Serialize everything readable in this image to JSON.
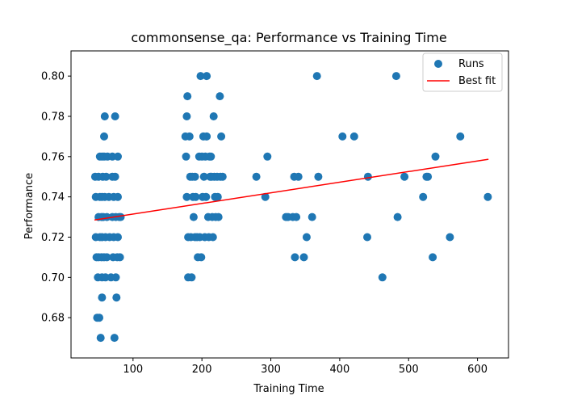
{
  "chart_data": {
    "type": "scatter",
    "title": "commonsense_qa: Performance vs Training Time",
    "xlabel": "Training Time",
    "ylabel": "Performance",
    "xlim": [
      10,
      645
    ],
    "ylim": [
      0.66,
      0.8125
    ],
    "xticks": [
      100,
      200,
      300,
      400,
      500,
      600
    ],
    "yticks": [
      0.68,
      0.7,
      0.72,
      0.74,
      0.76,
      0.78,
      0.8
    ],
    "ytick_labels": [
      "0.68",
      "0.70",
      "0.72",
      "0.74",
      "0.76",
      "0.78",
      "0.80"
    ],
    "legend": {
      "position": "top-right",
      "entries": [
        "Runs",
        "Best fit"
      ]
    },
    "colors": {
      "points": "#1f77b4",
      "fit": "#ff0000"
    },
    "series": [
      {
        "name": "Runs",
        "kind": "scatter",
        "points": [
          [
            45,
            0.75
          ],
          [
            46,
            0.74
          ],
          [
            46,
            0.72
          ],
          [
            47,
            0.71
          ],
          [
            48,
            0.68
          ],
          [
            49,
            0.7
          ],
          [
            50,
            0.75
          ],
          [
            50,
            0.73
          ],
          [
            50,
            0.71
          ],
          [
            51,
            0.68
          ],
          [
            52,
            0.76
          ],
          [
            52,
            0.74
          ],
          [
            52,
            0.72
          ],
          [
            53,
            0.67
          ],
          [
            54,
            0.73
          ],
          [
            54,
            0.71
          ],
          [
            55,
            0.76
          ],
          [
            55,
            0.74
          ],
          [
            55,
            0.72
          ],
          [
            55,
            0.7
          ],
          [
            55,
            0.69
          ],
          [
            56,
            0.75
          ],
          [
            57,
            0.73
          ],
          [
            58,
            0.71
          ],
          [
            58,
            0.76
          ],
          [
            58,
            0.77
          ],
          [
            59,
            0.78
          ],
          [
            59,
            0.74
          ],
          [
            60,
            0.72
          ],
          [
            60,
            0.7
          ],
          [
            61,
            0.75
          ],
          [
            62,
            0.73
          ],
          [
            62,
            0.71
          ],
          [
            63,
            0.76
          ],
          [
            65,
            0.74
          ],
          [
            66,
            0.72
          ],
          [
            68,
            0.7
          ],
          [
            70,
            0.76
          ],
          [
            70,
            0.75
          ],
          [
            70,
            0.73
          ],
          [
            71,
            0.71
          ],
          [
            72,
            0.74
          ],
          [
            72,
            0.72
          ],
          [
            73,
            0.67
          ],
          [
            74,
            0.78
          ],
          [
            74,
            0.75
          ],
          [
            75,
            0.73
          ],
          [
            75,
            0.7
          ],
          [
            76,
            0.69
          ],
          [
            77,
            0.71
          ],
          [
            78,
            0.76
          ],
          [
            78,
            0.74
          ],
          [
            78,
            0.72
          ],
          [
            80,
            0.73
          ],
          [
            81,
            0.71
          ],
          [
            82,
            0.73
          ],
          [
            176,
            0.77
          ],
          [
            177,
            0.76
          ],
          [
            178,
            0.74
          ],
          [
            178,
            0.78
          ],
          [
            179,
            0.79
          ],
          [
            180,
            0.72
          ],
          [
            180,
            0.7
          ],
          [
            182,
            0.77
          ],
          [
            183,
            0.75
          ],
          [
            184,
            0.72
          ],
          [
            185,
            0.7
          ],
          [
            186,
            0.75
          ],
          [
            187,
            0.74
          ],
          [
            188,
            0.73
          ],
          [
            190,
            0.72
          ],
          [
            190,
            0.75
          ],
          [
            191,
            0.74
          ],
          [
            193,
            0.72
          ],
          [
            194,
            0.71
          ],
          [
            196,
            0.76
          ],
          [
            197,
            0.72
          ],
          [
            198,
            0.8
          ],
          [
            199,
            0.71
          ],
          [
            200,
            0.76
          ],
          [
            201,
            0.74
          ],
          [
            202,
            0.77
          ],
          [
            203,
            0.75
          ],
          [
            204,
            0.72
          ],
          [
            205,
            0.76
          ],
          [
            206,
            0.74
          ],
          [
            207,
            0.77
          ],
          [
            207,
            0.8
          ],
          [
            209,
            0.73
          ],
          [
            210,
            0.72
          ],
          [
            211,
            0.76
          ],
          [
            212,
            0.75
          ],
          [
            213,
            0.76
          ],
          [
            214,
            0.75
          ],
          [
            215,
            0.73
          ],
          [
            216,
            0.72
          ],
          [
            217,
            0.78
          ],
          [
            218,
            0.75
          ],
          [
            219,
            0.74
          ],
          [
            220,
            0.73
          ],
          [
            222,
            0.75
          ],
          [
            223,
            0.74
          ],
          [
            224,
            0.73
          ],
          [
            226,
            0.79
          ],
          [
            227,
            0.75
          ],
          [
            228,
            0.77
          ],
          [
            230,
            0.75
          ],
          [
            279,
            0.75
          ],
          [
            292,
            0.74
          ],
          [
            295,
            0.76
          ],
          [
            322,
            0.73
          ],
          [
            325,
            0.73
          ],
          [
            332,
            0.73
          ],
          [
            334,
            0.75
          ],
          [
            335,
            0.71
          ],
          [
            337,
            0.73
          ],
          [
            340,
            0.75
          ],
          [
            348,
            0.71
          ],
          [
            352,
            0.72
          ],
          [
            360,
            0.73
          ],
          [
            367,
            0.8
          ],
          [
            369,
            0.75
          ],
          [
            404,
            0.77
          ],
          [
            421,
            0.77
          ],
          [
            440,
            0.72
          ],
          [
            441,
            0.75
          ],
          [
            462,
            0.7
          ],
          [
            482,
            0.8
          ],
          [
            484,
            0.73
          ],
          [
            494,
            0.75
          ],
          [
            521,
            0.74
          ],
          [
            526,
            0.75
          ],
          [
            528,
            0.75
          ],
          [
            535,
            0.71
          ],
          [
            539,
            0.76
          ],
          [
            560,
            0.72
          ],
          [
            575,
            0.77
          ],
          [
            615,
            0.74
          ]
        ]
      },
      {
        "name": "Best fit",
        "kind": "line",
        "points": [
          [
            44,
            0.7285
          ],
          [
            616,
            0.7587
          ]
        ]
      }
    ]
  }
}
